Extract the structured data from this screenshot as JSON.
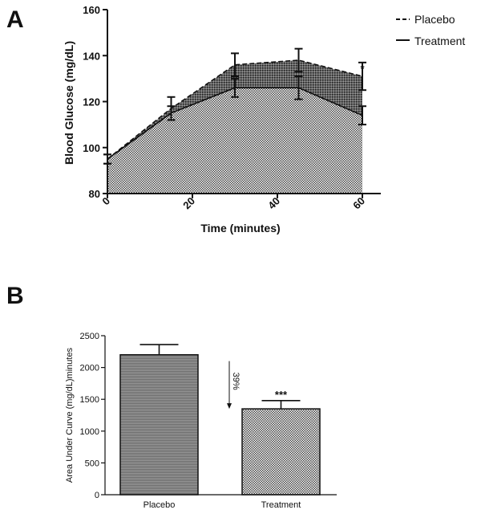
{
  "panels": {
    "a_letter": "A",
    "b_letter": "B"
  },
  "chart_data": [
    {
      "type": "line",
      "title": "",
      "xlabel": "Time (minutes)",
      "ylabel": "Blood Glucose (mg/dL)",
      "xlim": [
        0,
        60
      ],
      "ylim": [
        80,
        160
      ],
      "xticks": [
        0,
        20,
        40,
        60
      ],
      "yticks": [
        80,
        100,
        120,
        140,
        160
      ],
      "legend_position": "top-right",
      "series": [
        {
          "name": "Placebo",
          "style": "dashed",
          "x": [
            0,
            15,
            30,
            45,
            60
          ],
          "y": [
            95,
            117,
            136,
            138,
            131
          ],
          "err": [
            2,
            5,
            5,
            5,
            6
          ]
        },
        {
          "name": "Treatment",
          "style": "solid",
          "x": [
            0,
            15,
            30,
            45,
            60
          ],
          "y": [
            95,
            115,
            126,
            126,
            114
          ],
          "err": [
            2,
            3,
            4,
            5,
            4
          ]
        }
      ],
      "annotations": [
        {
          "text": "*",
          "x": 60,
          "y": 137
        }
      ],
      "area_shading": true,
      "grid": false
    },
    {
      "type": "bar",
      "title": "",
      "xlabel": "",
      "ylabel": "Area Under Curve (mg/dL)minutes",
      "ylim": [
        0,
        2500
      ],
      "yticks": [
        0,
        500,
        1000,
        1500,
        2000,
        2500
      ],
      "categories": [
        "Placebo",
        "Treatment"
      ],
      "values": [
        2200,
        1350
      ],
      "err": [
        160,
        130
      ],
      "annotations": [
        {
          "text": "***",
          "category": "Treatment",
          "y": 1590
        },
        {
          "text": "39%",
          "type": "arrow",
          "from": 2100,
          "to": 1350
        }
      ],
      "grid": false
    }
  ]
}
